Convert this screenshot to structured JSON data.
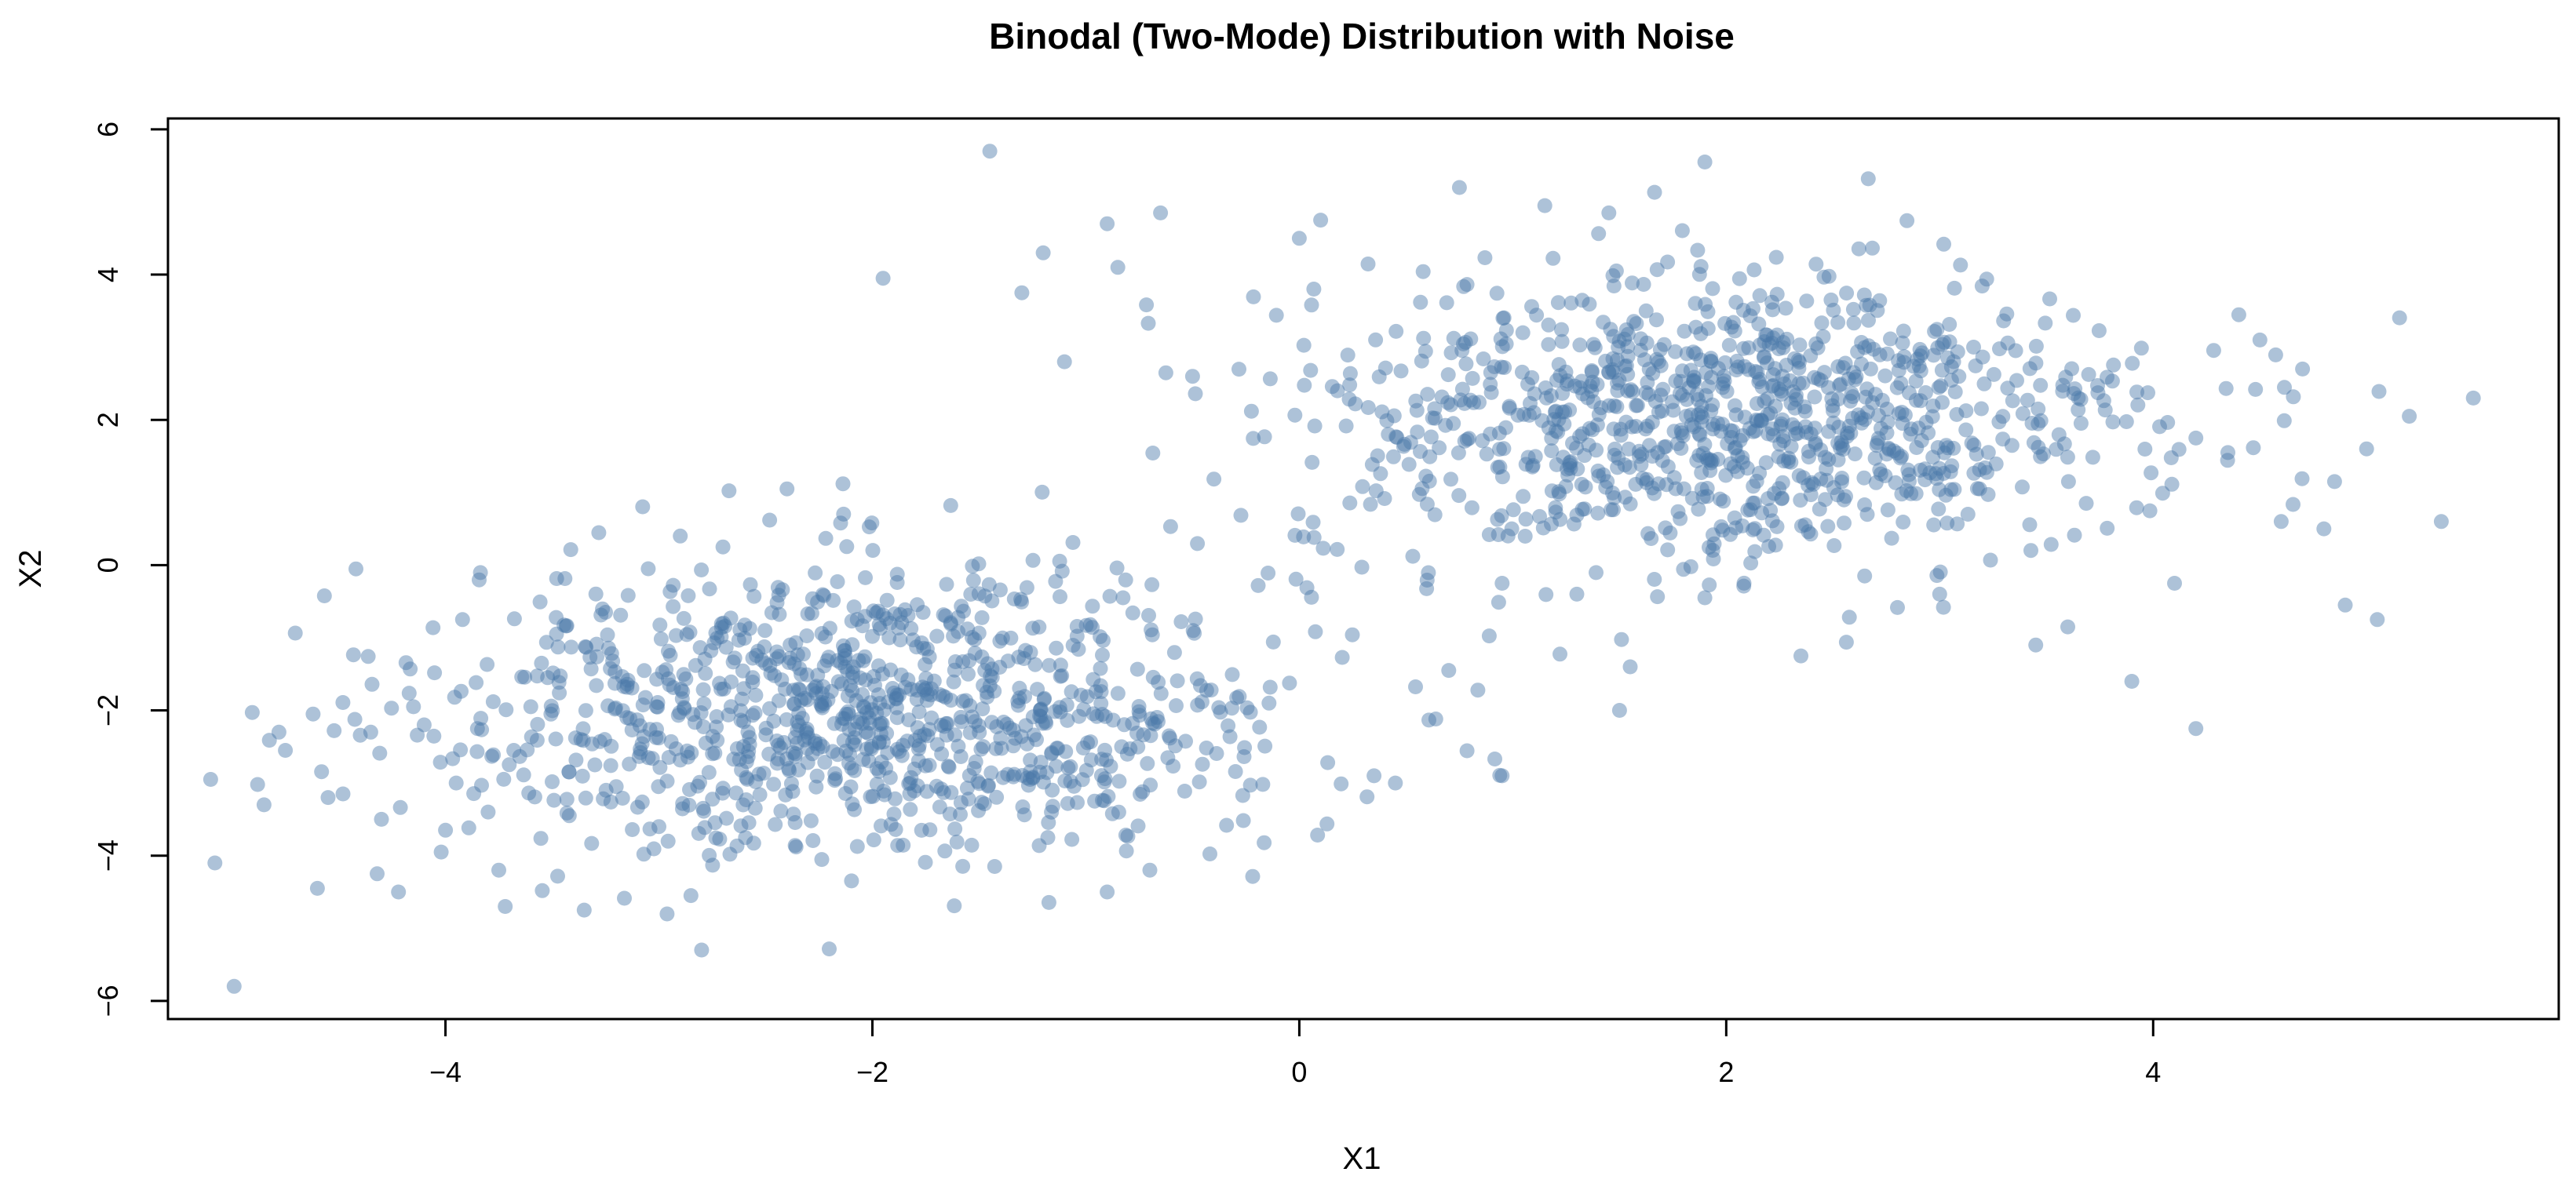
{
  "chart_data": {
    "type": "scatter",
    "title": "Binodal (Two-Mode) Distribution with Noise",
    "xlabel": "X1",
    "ylabel": "X2",
    "xlim": [
      -5.3,
      5.9
    ],
    "ylim": [
      -6.25,
      6.15
    ],
    "xticks": [
      -4,
      -2,
      0,
      2,
      4
    ],
    "yticks": [
      -6,
      -4,
      -2,
      0,
      2,
      4,
      6
    ],
    "xtick_labels": [
      "−4",
      "−2",
      "0",
      "2",
      "4"
    ],
    "ytick_labels": [
      "−6",
      "−4",
      "−2",
      "0",
      "2",
      "4",
      "6"
    ],
    "grid": false,
    "legend": "none",
    "point_color": "#4a77a8",
    "point_alpha": 0.45,
    "series": [
      {
        "description_of_clusters": [
          {
            "center": [
              -2.0,
              -2.0
            ],
            "sd": [
              1.0,
              1.0
            ],
            "n": 1000
          },
          {
            "center": [
              2.0,
              2.0
            ],
            "sd": [
              1.0,
              1.0
            ],
            "n": 1000
          }
        ],
        "points": [
          [
            -5.1,
            -2.95
          ],
          [
            -5.08,
            -4.1
          ],
          [
            -4.99,
            -5.8
          ],
          [
            -4.88,
            -3.02
          ],
          [
            -4.85,
            -3.3
          ],
          [
            -4.78,
            -2.3
          ],
          [
            -4.75,
            -2.55
          ],
          [
            -4.62,
            -2.05
          ],
          [
            -4.6,
            -4.45
          ],
          [
            -4.55,
            -3.2
          ],
          [
            -4.48,
            -3.15
          ],
          [
            -4.35,
            -2.3
          ],
          [
            -4.32,
            -4.25
          ],
          [
            -4.3,
            -3.5
          ],
          [
            -4.22,
            -4.5
          ],
          [
            -4.15,
            -1.95
          ],
          [
            -4.1,
            -2.2
          ],
          [
            -4.02,
            -3.95
          ],
          [
            -4.0,
            -3.65
          ],
          [
            -3.95,
            -3.0
          ],
          [
            -3.92,
            -0.75
          ],
          [
            -3.85,
            -2.25
          ],
          [
            -3.8,
            -3.4
          ],
          [
            -3.75,
            -4.2
          ],
          [
            -3.72,
            -4.7
          ],
          [
            -3.68,
            -2.55
          ],
          [
            -3.6,
            -1.95
          ],
          [
            -3.55,
            -1.35
          ],
          [
            -3.48,
            -0.95
          ],
          [
            -3.42,
            -3.45
          ],
          [
            -3.35,
            -4.75
          ],
          [
            -3.3,
            -2.75
          ],
          [
            -3.25,
            -0.65
          ],
          [
            -3.2,
            -3.05
          ],
          [
            -3.15,
            -2.1
          ],
          [
            -3.05,
            -0.05
          ],
          [
            -3.0,
            -3.6
          ],
          [
            -2.95,
            -1.65
          ],
          [
            -2.9,
            0.4
          ],
          [
            -2.85,
            -4.55
          ],
          [
            -2.8,
            -5.3
          ],
          [
            -2.78,
            -2.45
          ],
          [
            -2.7,
            0.25
          ],
          [
            -2.4,
            1.05
          ],
          [
            -1.95,
            3.95
          ],
          [
            -1.45,
            5.7
          ],
          [
            -1.3,
            3.75
          ],
          [
            -1.2,
            4.3
          ],
          [
            -1.1,
            2.8
          ],
          [
            -0.9,
            4.7
          ],
          [
            -0.85,
            4.1
          ],
          [
            -0.65,
            4.85
          ],
          [
            -0.5,
            2.6
          ],
          [
            -0.9,
            -4.5
          ],
          [
            -0.7,
            -4.2
          ],
          [
            0.0,
            4.5
          ],
          [
            0.1,
            4.75
          ],
          [
            0.35,
            -2.9
          ],
          [
            0.45,
            -3.0
          ],
          [
            0.7,
            -1.45
          ],
          [
            0.75,
            5.2
          ],
          [
            0.95,
            -2.9
          ],
          [
            1.15,
            4.95
          ],
          [
            1.45,
            4.85
          ],
          [
            1.5,
            -2.0
          ],
          [
            1.55,
            -1.4
          ],
          [
            1.9,
            5.55
          ],
          [
            3.9,
            -1.6
          ],
          [
            4.2,
            -2.25
          ],
          [
            4.9,
            -0.55
          ],
          [
            5.05,
            -0.75
          ],
          [
            5.2,
            2.05
          ],
          [
            5.35,
            0.6
          ],
          [
            5.5,
            2.3
          ],
          [
            4.7,
            2.7
          ],
          [
            4.5,
            3.1
          ],
          [
            4.85,
            1.15
          ],
          [
            5.0,
            1.6
          ],
          [
            4.8,
            0.5
          ],
          [
            4.6,
            0.6
          ],
          [
            4.35,
            1.55
          ],
          [
            4.2,
            1.75
          ],
          [
            4.1,
            -0.25
          ],
          [
            3.6,
            -0.85
          ],
          [
            3.45,
            -1.1
          ],
          [
            3.0,
            -0.4
          ],
          [
            2.35,
            -1.25
          ],
          [
            1.9,
            -0.45
          ],
          [
            1.3,
            -0.4
          ],
          [
            0.95,
            -0.25
          ]
        ]
      }
    ]
  }
}
